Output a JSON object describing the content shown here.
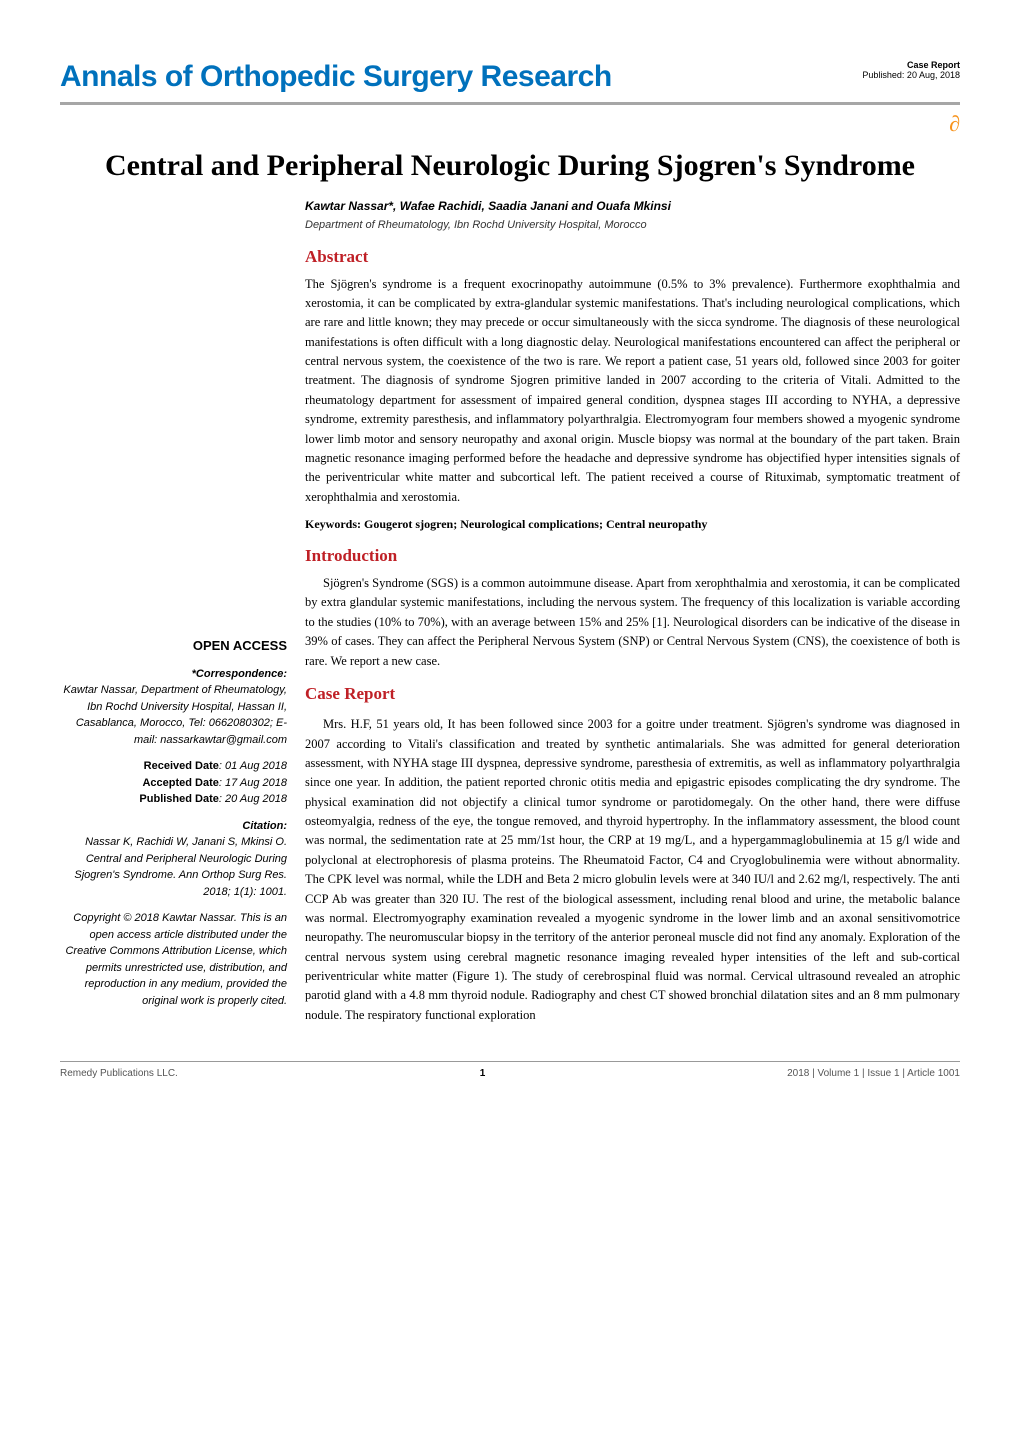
{
  "header": {
    "journal": "Annals of Orthopedic Surgery Research",
    "article_type": "Case Report",
    "published_label": "Published: 20 Aug, 2018",
    "colors": {
      "journal_blue": "#0071bc",
      "oa_orange": "#f7941e",
      "section_red": "#bf2026",
      "rule_gray": "#a6a6a6"
    }
  },
  "title": "Central and Peripheral Neurologic During Sjogren's Syndrome",
  "authors": "Kawtar Nassar*, Wafae Rachidi, Saadia Janani and Ouafa Mkinsi",
  "affiliation": "Department of Rheumatology, Ibn Rochd University Hospital, Morocco",
  "sections": {
    "abstract_h": "Abstract",
    "abstract_body": "The Sjögren's syndrome is a frequent exocrinopathy autoimmune (0.5% to 3% prevalence). Furthermore exophthalmia and xerostomia, it can be complicated by extra-glandular systemic manifestations. That's including neurological complications, which are rare and little known; they may precede or occur simultaneously with the sicca syndrome. The diagnosis of these neurological manifestations is often difficult with a long diagnostic delay. Neurological manifestations encountered can affect the peripheral or central nervous system, the coexistence of the two is rare. We report a patient case, 51 years old, followed since 2003 for goiter treatment. The diagnosis of syndrome Sjogren primitive landed in 2007 according to the criteria of Vitali. Admitted to the rheumatology department for assessment of impaired general condition, dyspnea stages III according to NYHA, a depressive syndrome, extremity paresthesis, and inflammatory polyarthralgia. Electromyogram four members showed a myogenic syndrome lower limb motor and sensory neuropathy and axonal origin. Muscle biopsy was normal at the boundary of the part taken. Brain magnetic resonance imaging performed before the headache and depressive syndrome has objectified hyper intensities signals of the periventricular white matter and subcortical left. The patient received a course of Rituximab, symptomatic treatment of xerophthalmia and xerostomia.",
    "keywords": "Keywords: Gougerot sjogren; Neurological complications; Central neuropathy",
    "intro_h": "Introduction",
    "intro_body": "Sjögren's Syndrome (SGS) is a common autoimmune disease. Apart from xerophthalmia and xerostomia, it can be complicated by extra glandular systemic manifestations, including the nervous system. The frequency of this localization is variable according to the studies (10% to 70%), with an average between 15% and 25% [1]. Neurological disorders can be indicative of the disease in 39% of cases. They can affect the Peripheral Nervous System (SNP) or Central Nervous System (CNS), the coexistence of both is rare. We report a new case.",
    "case_h": "Case Report",
    "case_body": "Mrs. H.F, 51 years old, It has been followed since 2003 for a goitre under treatment. Sjögren's syndrome was diagnosed in 2007 according to Vitali's classification and treated by synthetic antimalarials. She was admitted for general deterioration assessment, with NYHA stage III dyspnea, depressive syndrome, paresthesia of extremitis, as well as inflammatory polyarthralgia since one year. In addition, the patient reported chronic otitis media and epigastric episodes complicating the dry syndrome. The physical examination did not objectify a clinical tumor syndrome or parotidomegaly. On the other hand, there were diffuse osteomyalgia, redness of the eye, the tongue removed, and thyroid hypertrophy. In the inflammatory assessment, the blood count was normal, the sedimentation rate at 25 mm/1st hour, the CRP at 19 mg/L, and a hypergammaglobulinemia at 15 g/l wide and polyclonal at electrophoresis of plasma proteins. The Rheumatoid Factor, C4 and Cryoglobulinemia were without abnormality. The CPK level was normal, while the LDH and Beta 2 micro globulin levels were at 340 IU/l and 2.62 mg/l, respectively. The anti CCP Ab was greater than 320 IU. The rest of the biological assessment, including renal blood and urine, the metabolic balance was normal. Electromyography examination revealed a myogenic syndrome in the lower limb and an axonal sensitivomotrice neuropathy. The neuromuscular biopsy in the territory of the anterior peroneal muscle did not find any anomaly. Exploration of the central nervous system using cerebral magnetic resonance imaging revealed hyper intensities of the left and sub-cortical periventricular white matter (Figure 1). The study of cerebrospinal fluid was normal. Cervical ultrasound revealed an atrophic parotid gland with a 4.8 mm thyroid nodule. Radiography and chest CT showed bronchial dilatation sites and an 8 mm pulmonary nodule. The respiratory functional exploration"
  },
  "sidebar": {
    "open_access": "OPEN ACCESS",
    "correspondence_h": "*Correspondence:",
    "correspondence": "Kawtar Nassar, Department of Rheumatology, Ibn Rochd University Hospital, Hassan II, Casablanca, Morocco, Tel: 0662080302; E-mail: nassarkawtar@gmail.com",
    "received_l": "Received Date",
    "received_v": ": 01 Aug 2018",
    "accepted_l": "Accepted Date",
    "accepted_v": ": 17 Aug 2018",
    "published_l": "Published Date",
    "published_v": ": 20 Aug 2018",
    "citation_h": "Citation:",
    "citation": "Nassar K, Rachidi W, Janani S, Mkinsi O. Central and Peripheral Neurologic During Sjogren's Syndrome. Ann Orthop Surg Res. 2018; 1(1): 1001.",
    "copyright_lead": "Copyright",
    "copyright": " © 2018 Kawtar Nassar. This is an open access article distributed under the Creative Commons Attribution License, which permits unrestricted use, distribution, and reproduction in any medium, provided the original work is properly cited."
  },
  "footer": {
    "left": "Remedy Publications LLC.",
    "page": "1",
    "right": "2018 | Volume 1 | Issue 1 | Article 1001"
  }
}
